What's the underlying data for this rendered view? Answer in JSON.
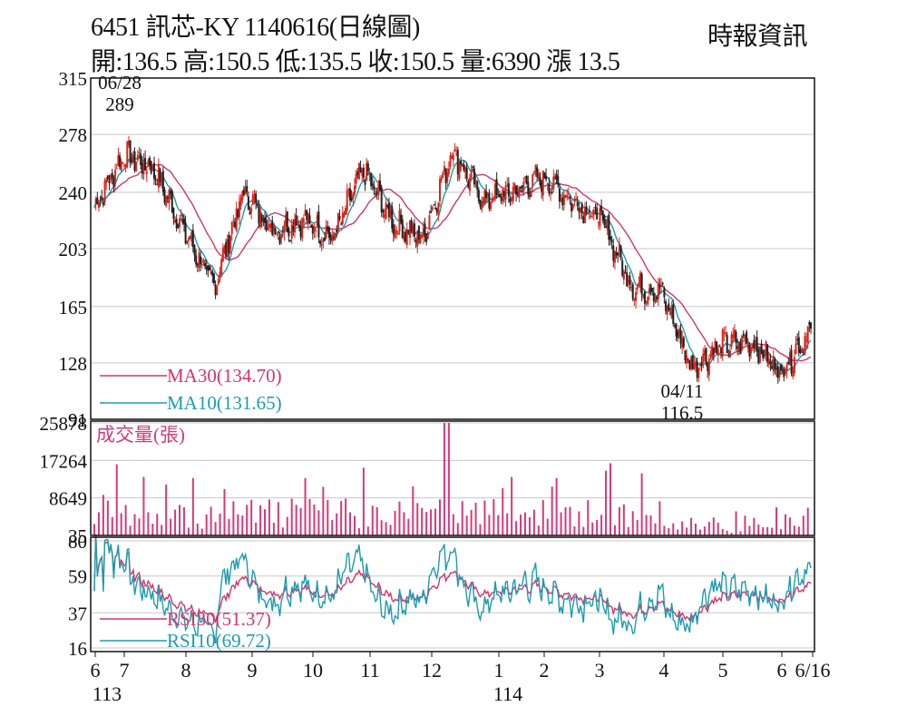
{
  "header": {
    "line1": "6451  訊芯-KY 1140616(日線圖)",
    "source": "時報資訊",
    "line2": "開:136.5 高:150.5 低:135.5 收:150.5 量:6390 漲 13.5"
  },
  "colors": {
    "ma30": "#d6336c",
    "ma10": "#1e9bb0",
    "candle_up": "#d9261c",
    "candle_down": "#222222",
    "volume": "#d63a78",
    "grid": "#c8c8c8"
  },
  "chart_data": [
    {
      "type": "candlestick",
      "panel": "price",
      "y_ticks": [
        "315",
        "278",
        "240",
        "203",
        "165",
        "128",
        "91"
      ],
      "ylim": [
        91,
        315
      ],
      "legend": [
        {
          "name": "MA30(134.70)",
          "color": "#d6336c"
        },
        {
          "name": "MA10(131.65)",
          "color": "#1e9bb0"
        }
      ],
      "annotations": [
        {
          "date": "06/28",
          "value": "289",
          "label": "06/28\n289"
        },
        {
          "date": "04/11",
          "value": "116.5",
          "label": "04/11\n116.5"
        }
      ],
      "last_bar": {
        "open": 136.5,
        "high": 150.5,
        "low": 135.5,
        "close": 150.5
      },
      "close_trend": [
        {
          "month": "6",
          "close": 230
        },
        {
          "month": "7",
          "close": 265
        },
        {
          "month": "7",
          "close": 255
        },
        {
          "month": "8",
          "close": 215
        },
        {
          "month": "8",
          "close": 178
        },
        {
          "month": "9",
          "close": 240
        },
        {
          "month": "9",
          "close": 215
        },
        {
          "month": "10",
          "close": 222
        },
        {
          "month": "10",
          "close": 210
        },
        {
          "month": "11",
          "close": 255
        },
        {
          "month": "11",
          "close": 220
        },
        {
          "month": "12",
          "close": 210
        },
        {
          "month": "12",
          "close": 268
        },
        {
          "month": "1",
          "close": 235
        },
        {
          "month": "1",
          "close": 240
        },
        {
          "month": "2",
          "close": 250
        },
        {
          "month": "2",
          "close": 235
        },
        {
          "month": "3",
          "close": 222
        },
        {
          "month": "3",
          "close": 178
        },
        {
          "month": "4",
          "close": 175
        },
        {
          "month": "4",
          "close": 125
        },
        {
          "month": "5",
          "close": 140
        },
        {
          "month": "5",
          "close": 142
        },
        {
          "month": "6",
          "close": 122
        },
        {
          "month": "6/16",
          "close": 150.5
        }
      ]
    },
    {
      "type": "bar",
      "panel": "volume",
      "title": "成交量(張)",
      "y_ticks": [
        "25878",
        "17264",
        "8649",
        "35"
      ],
      "ylim": [
        35,
        25878
      ],
      "last_value": 6390
    },
    {
      "type": "line",
      "panel": "rsi",
      "y_ticks": [
        "80",
        "59",
        "37",
        "16"
      ],
      "ylim": [
        16,
        80
      ],
      "legend": [
        {
          "name": "RSI30(51.37)",
          "color": "#d6336c"
        },
        {
          "name": "RSI10(69.72)",
          "color": "#1e9bb0"
        }
      ]
    }
  ],
  "x_axis": {
    "months": [
      "6",
      "7",
      "8",
      "9",
      "10",
      "11",
      "12",
      "1",
      "2",
      "3",
      "4",
      "5",
      "6",
      "6/16"
    ],
    "years": [
      "113",
      "114"
    ]
  }
}
